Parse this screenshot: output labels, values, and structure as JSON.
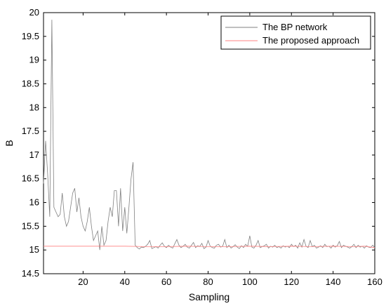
{
  "chart_data": {
    "type": "line",
    "title": "",
    "xlabel": "Sampling",
    "ylabel": "B",
    "xlim": [
      1,
      160
    ],
    "ylim": [
      14.5,
      20
    ],
    "xticks": [
      20,
      40,
      60,
      80,
      100,
      120,
      140,
      160
    ],
    "yticks": [
      14.5,
      15,
      15.5,
      16,
      16.5,
      17,
      17.5,
      18,
      18.5,
      19,
      19.5,
      20
    ],
    "grid": false,
    "legend_position": "top-right",
    "series": [
      {
        "name": "The BP network",
        "color": "#808080",
        "x": [
          1,
          2,
          3,
          4,
          5,
          6,
          7,
          8,
          9,
          10,
          11,
          12,
          13,
          14,
          15,
          16,
          17,
          18,
          19,
          20,
          21,
          22,
          23,
          24,
          25,
          26,
          27,
          28,
          29,
          30,
          31,
          32,
          33,
          34,
          35,
          36,
          37,
          38,
          39,
          40,
          41,
          42,
          43,
          44,
          45,
          46,
          47,
          48,
          49,
          50,
          51,
          52,
          53,
          54,
          55,
          56,
          57,
          58,
          59,
          60,
          61,
          62,
          63,
          64,
          65,
          66,
          67,
          68,
          69,
          70,
          71,
          72,
          73,
          74,
          75,
          76,
          77,
          78,
          79,
          80,
          81,
          82,
          83,
          84,
          85,
          86,
          87,
          88,
          89,
          90,
          91,
          92,
          93,
          94,
          95,
          96,
          97,
          98,
          99,
          100,
          101,
          102,
          103,
          104,
          105,
          106,
          107,
          108,
          109,
          110,
          111,
          112,
          113,
          114,
          115,
          116,
          117,
          118,
          119,
          120,
          121,
          122,
          123,
          124,
          125,
          126,
          127,
          128,
          129,
          130,
          131,
          132,
          133,
          134,
          135,
          136,
          137,
          138,
          139,
          140,
          141,
          142,
          143,
          144,
          145,
          146,
          147,
          148,
          149,
          150,
          151,
          152,
          153,
          154,
          155,
          156,
          157,
          158,
          159,
          160
        ],
        "y": [
          16.4,
          17.3,
          16.6,
          15.7,
          19.85,
          15.9,
          15.8,
          15.7,
          15.75,
          16.2,
          15.7,
          15.5,
          15.6,
          15.9,
          16.2,
          16.3,
          15.8,
          16.1,
          15.7,
          15.5,
          15.4,
          15.6,
          15.9,
          15.5,
          15.2,
          15.3,
          15.4,
          15.0,
          15.5,
          15.1,
          15.2,
          15.6,
          15.9,
          15.7,
          16.25,
          16.25,
          15.5,
          16.3,
          15.4,
          15.9,
          15.35,
          15.9,
          16.5,
          16.85,
          15.1,
          15.05,
          15.02,
          15.06,
          15.05,
          15.08,
          15.12,
          15.2,
          15.03,
          15.05,
          15.07,
          15.04,
          15.1,
          15.15,
          15.08,
          15.05,
          15.1,
          15.06,
          15.04,
          15.13,
          15.22,
          15.1,
          15.05,
          15.08,
          15.12,
          15.06,
          15.04,
          15.1,
          15.16,
          15.05,
          15.09,
          15.07,
          15.14,
          15.03,
          15.06,
          15.2,
          15.08,
          15.05,
          15.04,
          15.1,
          15.12,
          15.06,
          15.08,
          15.22,
          15.05,
          15.1,
          15.04,
          15.07,
          15.11,
          15.06,
          15.03,
          15.09,
          15.05,
          15.12,
          15.08,
          15.3,
          15.06,
          15.04,
          15.1,
          15.2,
          15.05,
          15.07,
          15.09,
          15.12,
          15.04,
          15.08,
          15.06,
          15.1,
          15.05,
          15.07,
          15.04,
          15.09,
          15.06,
          15.08,
          15.05,
          15.12,
          15.07,
          15.1,
          15.04,
          15.15,
          15.06,
          15.22,
          15.08,
          15.05,
          15.2,
          15.07,
          15.1,
          15.04,
          15.06,
          15.09,
          15.05,
          15.12,
          15.07,
          15.08,
          15.04,
          15.1,
          15.06,
          15.09,
          15.18,
          15.05,
          15.1,
          15.08,
          15.06,
          15.04,
          15.07,
          15.12,
          15.05,
          15.1,
          15.06,
          15.08,
          15.04,
          15.09,
          15.06,
          15.05,
          15.1,
          15.05
        ]
      },
      {
        "name": "The proposed approach",
        "color": "#ff8080",
        "x": [
          1,
          10,
          20,
          30,
          40,
          50,
          60,
          70,
          80,
          90,
          100,
          110,
          120,
          130,
          140,
          150,
          155,
          160
        ],
        "y": [
          15.08,
          15.08,
          15.08,
          15.08,
          15.08,
          15.07,
          15.07,
          15.08,
          15.07,
          15.07,
          15.08,
          15.07,
          15.08,
          15.07,
          15.08,
          15.07,
          15.08,
          15.05
        ]
      }
    ]
  }
}
